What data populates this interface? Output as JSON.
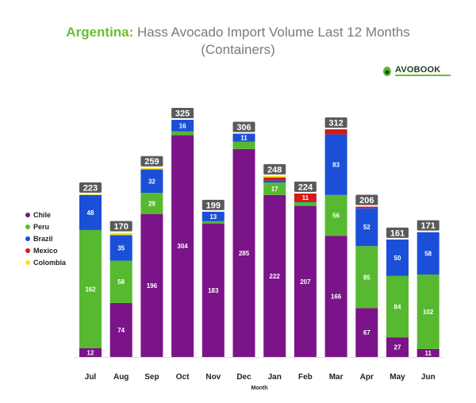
{
  "header": {
    "country": "Argentina:",
    "title_rest": "Hass Avocado Import Volume Last 12 Months",
    "subtitle": "(Containers)"
  },
  "logo": {
    "text": "AVOBOOK"
  },
  "colors": {
    "Chile": "#7b1389",
    "Peru": "#57b92f",
    "Brazil": "#1b4fd8",
    "Mexico": "#d61a1a",
    "Colombia": "#f2e31d",
    "total_label_bg": "#5a5a5a"
  },
  "chart_data": {
    "type": "bar",
    "stacked": true,
    "xlabel": "Month",
    "categories": [
      "Jul",
      "Aug",
      "Sep",
      "Oct",
      "Nov",
      "Dec",
      "Jan",
      "Feb",
      "Mar",
      "Apr",
      "May",
      "Jun"
    ],
    "series": [
      {
        "name": "Chile",
        "values": [
          12,
          74,
          196,
          304,
          183,
          285,
          222,
          207,
          166,
          67,
          27,
          11
        ]
      },
      {
        "name": "Peru",
        "values": [
          162,
          58,
          29,
          5,
          3,
          10,
          17,
          5,
          56,
          85,
          84,
          102
        ]
      },
      {
        "name": "Brazil",
        "values": [
          48,
          35,
          32,
          16,
          13,
          11,
          3,
          1,
          83,
          52,
          50,
          58
        ]
      },
      {
        "name": "Mexico",
        "values": [
          0,
          0,
          0,
          0,
          0,
          0,
          4,
          11,
          7,
          2,
          0,
          0
        ]
      },
      {
        "name": "Colombia",
        "values": [
          1,
          3,
          2,
          0,
          0,
          0,
          2,
          0,
          0,
          0,
          0,
          0
        ]
      }
    ],
    "totals": [
      223,
      170,
      259,
      325,
      199,
      306,
      248,
      224,
      312,
      206,
      161,
      171
    ],
    "legend_placement": "left",
    "ylim": [
      0,
      330
    ],
    "grid": false
  }
}
